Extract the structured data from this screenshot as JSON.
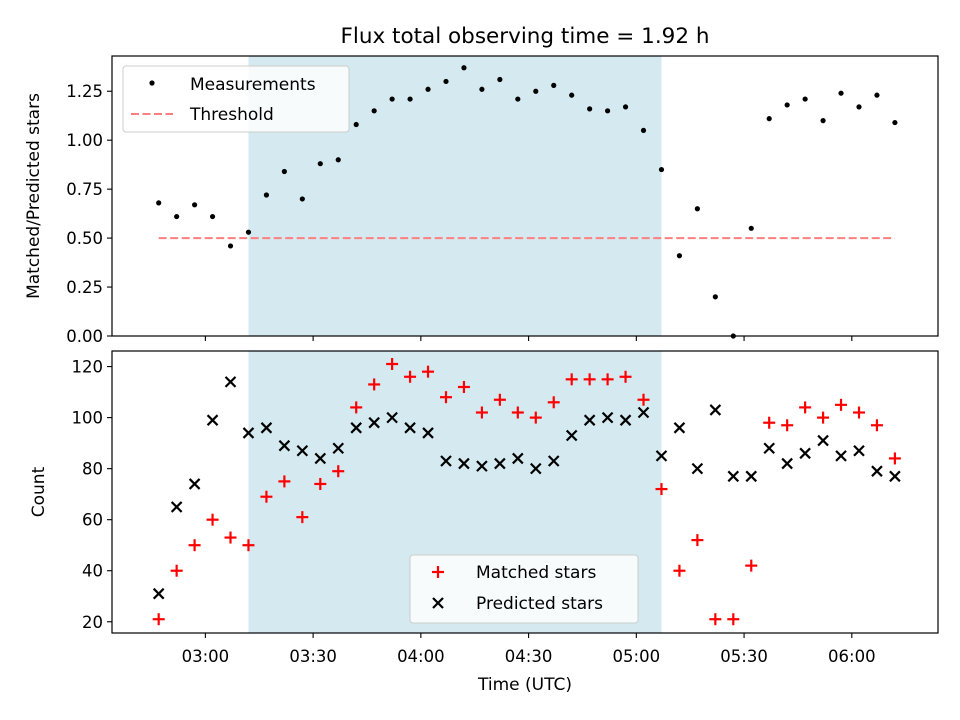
{
  "figure": {
    "title": "Flux total observing time = 1.92 h",
    "xlabel": "Time (UTC)"
  },
  "chart_data": [
    {
      "type": "scatter",
      "ylabel": "Matched/Predicted stars",
      "xlim": [
        "02:34",
        "06:24"
      ],
      "ylim": [
        0,
        1.43
      ],
      "yticks": [
        0.0,
        0.25,
        0.5,
        0.75,
        1.0,
        1.25
      ],
      "ytick_labels": [
        "0.00",
        "0.25",
        "0.50",
        "0.75",
        "1.00",
        "1.25"
      ],
      "xticks": [
        "03:00",
        "03:30",
        "04:00",
        "04:30",
        "05:00",
        "05:30",
        "06:00"
      ],
      "shaded_span": {
        "start": "03:12",
        "end": "05:07",
        "color": "#d4eaf0"
      },
      "legend": {
        "position": "top-left",
        "entries": [
          "Measurements",
          "Threshold"
        ]
      },
      "series": [
        {
          "name": "Measurements",
          "marker": "dot",
          "color": "#000000",
          "points": [
            [
              "02:47",
              0.68
            ],
            [
              "02:52",
              0.61
            ],
            [
              "02:57",
              0.67
            ],
            [
              "03:02",
              0.61
            ],
            [
              "03:07",
              0.46
            ],
            [
              "03:12",
              0.53
            ],
            [
              "03:17",
              0.72
            ],
            [
              "03:22",
              0.84
            ],
            [
              "03:27",
              0.7
            ],
            [
              "03:32",
              0.88
            ],
            [
              "03:37",
              0.9
            ],
            [
              "03:42",
              1.08
            ],
            [
              "03:47",
              1.15
            ],
            [
              "03:52",
              1.21
            ],
            [
              "03:57",
              1.21
            ],
            [
              "04:02",
              1.26
            ],
            [
              "04:07",
              1.3
            ],
            [
              "04:12",
              1.37
            ],
            [
              "04:17",
              1.26
            ],
            [
              "04:22",
              1.31
            ],
            [
              "04:27",
              1.21
            ],
            [
              "04:32",
              1.25
            ],
            [
              "04:37",
              1.28
            ],
            [
              "04:42",
              1.23
            ],
            [
              "04:47",
              1.16
            ],
            [
              "04:52",
              1.15
            ],
            [
              "04:57",
              1.17
            ],
            [
              "05:02",
              1.05
            ],
            [
              "05:07",
              0.85
            ],
            [
              "05:12",
              0.41
            ],
            [
              "05:17",
              0.65
            ],
            [
              "05:22",
              0.2
            ],
            [
              "05:27",
              0.0
            ],
            [
              "05:32",
              0.55
            ],
            [
              "05:37",
              1.11
            ],
            [
              "05:42",
              1.18
            ],
            [
              "05:47",
              1.21
            ],
            [
              "05:52",
              1.1
            ],
            [
              "05:57",
              1.24
            ],
            [
              "06:02",
              1.17
            ],
            [
              "06:07",
              1.23
            ],
            [
              "06:12",
              1.09
            ]
          ]
        },
        {
          "name": "Threshold",
          "marker": "dashed-line",
          "color": "#ff7f7f",
          "points": [
            [
              "02:47",
              0.5
            ],
            [
              "06:12",
              0.5
            ]
          ]
        }
      ]
    },
    {
      "type": "scatter",
      "ylabel": "Count",
      "xlim": [
        "02:34",
        "06:24"
      ],
      "ylim": [
        15.6,
        126.1
      ],
      "yticks": [
        20,
        40,
        60,
        80,
        100,
        120
      ],
      "ytick_labels": [
        "20",
        "40",
        "60",
        "80",
        "100",
        "120"
      ],
      "xticks": [
        "03:00",
        "03:30",
        "04:00",
        "04:30",
        "05:00",
        "05:30",
        "06:00"
      ],
      "xtick_labels": [
        "03:00",
        "03:30",
        "04:00",
        "04:30",
        "05:00",
        "05:30",
        "06:00"
      ],
      "shaded_span": {
        "start": "03:12",
        "end": "05:07",
        "color": "#d4eaf0"
      },
      "legend": {
        "position": "lower-center",
        "entries": [
          "Matched stars",
          "Predicted stars"
        ]
      },
      "series": [
        {
          "name": "Matched stars",
          "marker": "plus",
          "color": "#ff0000",
          "points": [
            [
              "02:47",
              21
            ],
            [
              "02:52",
              40
            ],
            [
              "02:57",
              50
            ],
            [
              "03:02",
              60
            ],
            [
              "03:07",
              53
            ],
            [
              "03:12",
              50
            ],
            [
              "03:17",
              69
            ],
            [
              "03:22",
              75
            ],
            [
              "03:27",
              61
            ],
            [
              "03:32",
              74
            ],
            [
              "03:37",
              79
            ],
            [
              "03:42",
              104
            ],
            [
              "03:47",
              113
            ],
            [
              "03:52",
              121
            ],
            [
              "03:57",
              116
            ],
            [
              "04:02",
              118
            ],
            [
              "04:07",
              108
            ],
            [
              "04:12",
              112
            ],
            [
              "04:17",
              102
            ],
            [
              "04:22",
              107
            ],
            [
              "04:27",
              102
            ],
            [
              "04:32",
              100
            ],
            [
              "04:37",
              106
            ],
            [
              "04:42",
              115
            ],
            [
              "04:47",
              115
            ],
            [
              "04:52",
              115
            ],
            [
              "04:57",
              116
            ],
            [
              "05:02",
              107
            ],
            [
              "05:07",
              72
            ],
            [
              "05:12",
              40
            ],
            [
              "05:17",
              52
            ],
            [
              "05:22",
              21
            ],
            [
              "05:27",
              21
            ],
            [
              "05:32",
              42
            ],
            [
              "05:37",
              98
            ],
            [
              "05:42",
              97
            ],
            [
              "05:47",
              104
            ],
            [
              "05:52",
              100
            ],
            [
              "05:57",
              105
            ],
            [
              "06:02",
              102
            ],
            [
              "06:07",
              97
            ],
            [
              "06:12",
              84
            ]
          ]
        },
        {
          "name": "Predicted stars",
          "marker": "x",
          "color": "#000000",
          "points": [
            [
              "02:47",
              31
            ],
            [
              "02:52",
              65
            ],
            [
              "02:57",
              74
            ],
            [
              "03:02",
              99
            ],
            [
              "03:07",
              114
            ],
            [
              "03:12",
              94
            ],
            [
              "03:17",
              96
            ],
            [
              "03:22",
              89
            ],
            [
              "03:27",
              87
            ],
            [
              "03:32",
              84
            ],
            [
              "03:37",
              88
            ],
            [
              "03:42",
              96
            ],
            [
              "03:47",
              98
            ],
            [
              "03:52",
              100
            ],
            [
              "03:57",
              96
            ],
            [
              "04:02",
              94
            ],
            [
              "04:07",
              83
            ],
            [
              "04:12",
              82
            ],
            [
              "04:17",
              81
            ],
            [
              "04:22",
              82
            ],
            [
              "04:27",
              84
            ],
            [
              "04:32",
              80
            ],
            [
              "04:37",
              83
            ],
            [
              "04:42",
              93
            ],
            [
              "04:47",
              99
            ],
            [
              "04:52",
              100
            ],
            [
              "04:57",
              99
            ],
            [
              "05:02",
              102
            ],
            [
              "05:07",
              85
            ],
            [
              "05:12",
              96
            ],
            [
              "05:17",
              80
            ],
            [
              "05:22",
              103
            ],
            [
              "05:27",
              77
            ],
            [
              "05:32",
              77
            ],
            [
              "05:37",
              88
            ],
            [
              "05:42",
              82
            ],
            [
              "05:47",
              86
            ],
            [
              "05:52",
              91
            ],
            [
              "05:57",
              85
            ],
            [
              "06:02",
              87
            ],
            [
              "06:07",
              79
            ],
            [
              "06:12",
              77
            ]
          ]
        }
      ]
    }
  ]
}
